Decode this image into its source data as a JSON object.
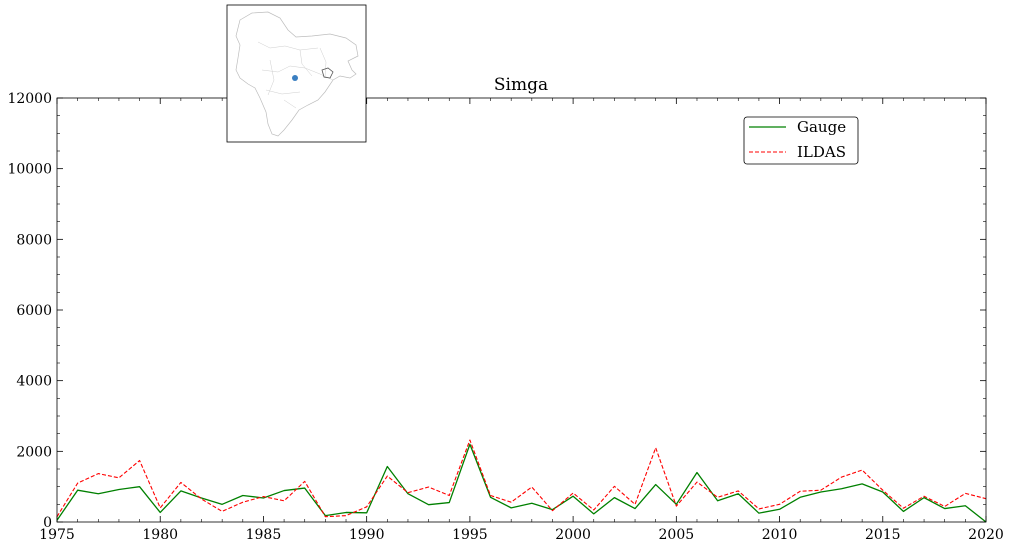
{
  "chart_data": {
    "type": "line",
    "title": "Simga",
    "xlabel": "",
    "ylabel": "",
    "xlim": [
      1975,
      2020
    ],
    "ylim": [
      0,
      12000
    ],
    "xticks": [
      1975,
      1980,
      1985,
      1990,
      1995,
      2000,
      2005,
      2010,
      2015,
      2020
    ],
    "yticks": [
      0,
      2000,
      4000,
      6000,
      8000,
      10000,
      12000
    ],
    "grid": false,
    "legend_position": "top-right",
    "x": [
      1975,
      1976,
      1977,
      1978,
      1979,
      1980,
      1981,
      1982,
      1983,
      1984,
      1985,
      1986,
      1987,
      1988,
      1989,
      1990,
      1991,
      1992,
      1993,
      1994,
      1995,
      1996,
      1997,
      1998,
      1999,
      2000,
      2001,
      2002,
      2003,
      2004,
      2005,
      2006,
      2007,
      2008,
      2009,
      2010,
      2011,
      2012,
      2013,
      2014,
      2015,
      2016,
      2017,
      2018,
      2019,
      2020
    ],
    "series": [
      {
        "name": "Gauge",
        "color": "#008000",
        "style": "solid",
        "values": [
          50,
          900,
          800,
          920,
          1000,
          270,
          880,
          680,
          500,
          750,
          680,
          890,
          960,
          180,
          270,
          260,
          1570,
          800,
          490,
          550,
          2200,
          700,
          400,
          530,
          350,
          730,
          230,
          690,
          380,
          1060,
          500,
          1400,
          600,
          800,
          250,
          360,
          700,
          850,
          940,
          1080,
          850,
          300,
          690,
          380,
          460,
          0
        ]
      },
      {
        "name": "ILDAS",
        "color": "#ff0000",
        "style": "dashed",
        "values": [
          150,
          1100,
          1370,
          1250,
          1740,
          400,
          1120,
          650,
          300,
          560,
          720,
          600,
          1150,
          150,
          180,
          430,
          1300,
          830,
          990,
          750,
          2320,
          750,
          560,
          990,
          320,
          820,
          340,
          1010,
          500,
          2100,
          450,
          1130,
          700,
          880,
          370,
          500,
          870,
          900,
          1270,
          1470,
          900,
          390,
          730,
          440,
          810,
          660
        ]
      }
    ]
  },
  "inset": {
    "description": "",
    "marker_color": "#3a7fc1"
  }
}
